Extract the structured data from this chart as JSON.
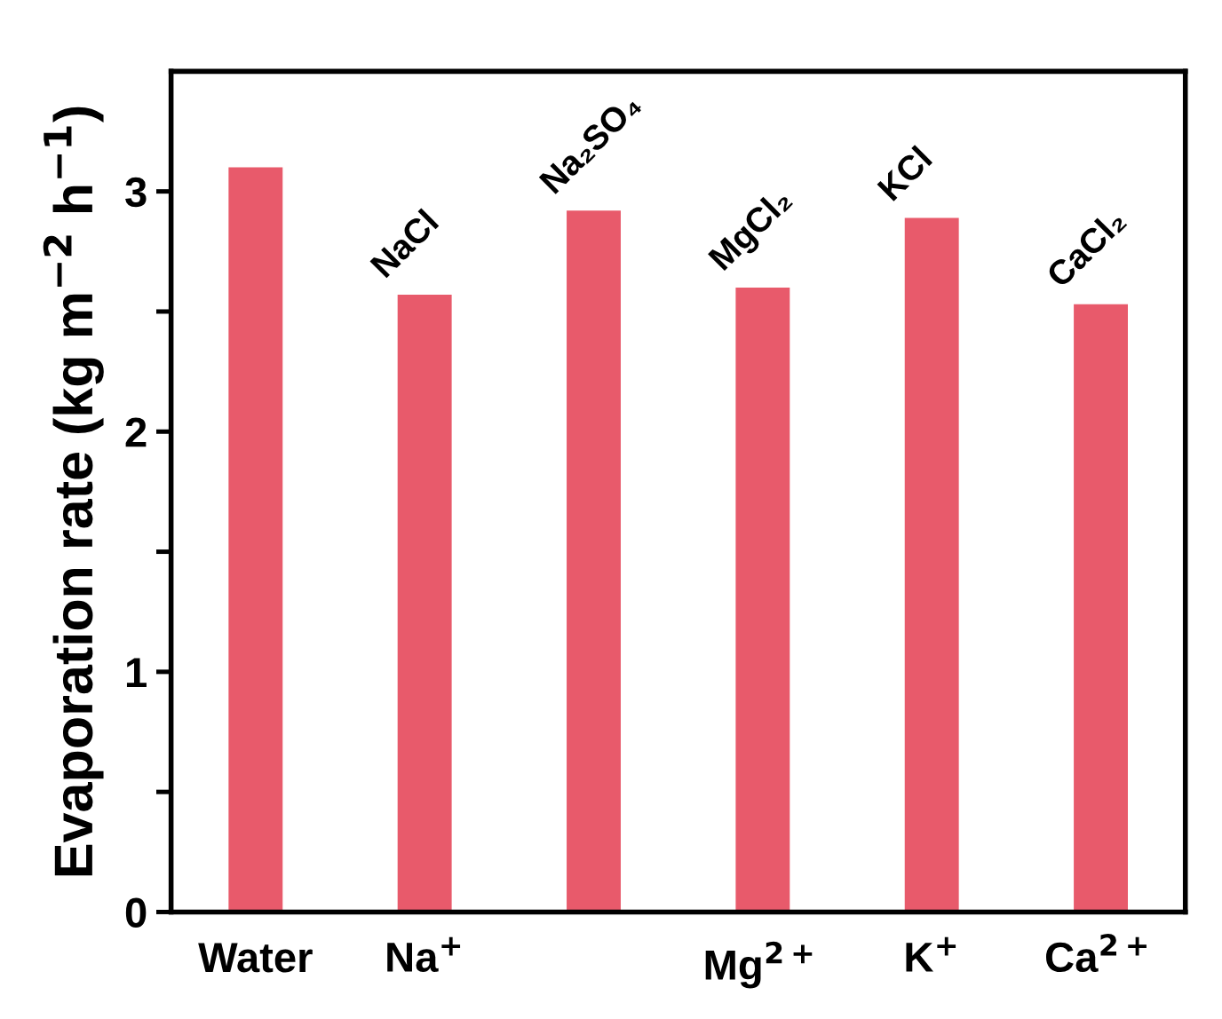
{
  "chart_data": {
    "type": "bar",
    "ylabel": "Evaporation rate (kg m$^{−2}$ h$^{−1}$)",
    "categories": [
      "Water",
      "Na$^{+}$",
      null,
      "Mg$^{2+}$",
      "K$^{+}$",
      "Ca$^{2+}$"
    ],
    "values": [
      3.1,
      2.57,
      2.92,
      2.6,
      2.89,
      2.53
    ],
    "color": "#e85a6b",
    "ylim": [
      0,
      3.5
    ],
    "yticks": [
      0,
      {
        "value": 0.5,
        "label": null
      },
      1,
      {
        "value": 1.5,
        "label": null
      },
      2,
      {
        "value": 2.5,
        "label": null
      },
      3
    ],
    "annotations": [
      {
        "text": "NaCl",
        "y": 2.57
      },
      {
        "text": "Na₂SO₄",
        "y": 2.92
      },
      {
        "text": "MgCl₂",
        "y": 2.6
      },
      {
        "text": "KCl",
        "y": 2.89
      },
      {
        "text": "CaCl₂",
        "y": 2.53
      }
    ]
  }
}
